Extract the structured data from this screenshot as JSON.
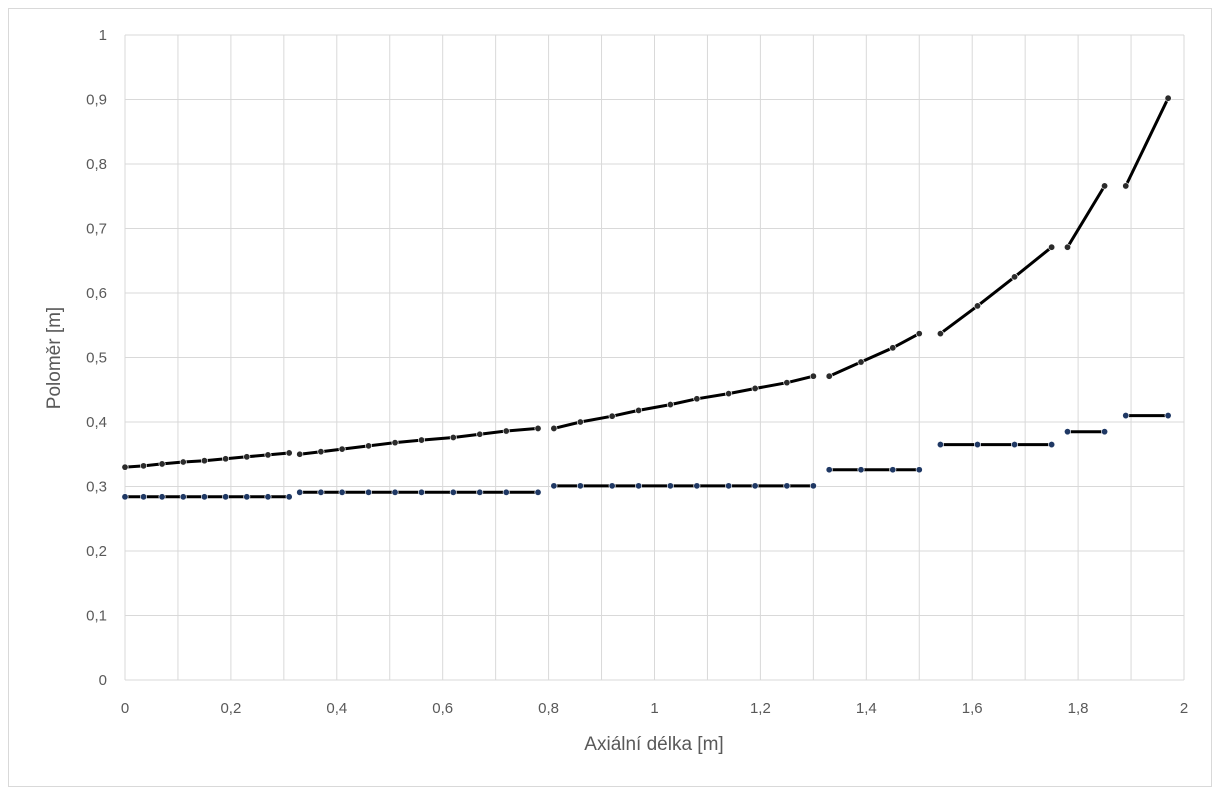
{
  "chart_data": {
    "type": "line",
    "title": "",
    "xlabel": "Axiální délka [m]",
    "ylabel": "Poloměr [m]",
    "xlim": [
      0,
      2
    ],
    "ylim": [
      0,
      1
    ],
    "x_ticks": [
      "0",
      "0,2",
      "0,4",
      "0,6",
      "0,8",
      "1",
      "1,2",
      "1,4",
      "1,6",
      "1,8",
      "2"
    ],
    "y_ticks": [
      "0",
      "0,1",
      "0,2",
      "0,3",
      "0,4",
      "0,5",
      "0,6",
      "0,7",
      "0,8",
      "0,9",
      "1"
    ],
    "grid": true,
    "legend": "none",
    "colors": {
      "outer": "#000000",
      "inner_line": "#000000",
      "inner_marker": "#1f3864",
      "outer_marker": "#2b2b2b"
    },
    "series": [
      {
        "segments": [
          {
            "x": [
              0,
              0.035,
              0.07,
              0.11,
              0.15,
              0.19,
              0.23,
              0.27,
              0.31
            ],
            "y": [
              0.33,
              0.332,
              0.335,
              0.338,
              0.34,
              0.343,
              0.346,
              0.349,
              0.352
            ]
          },
          {
            "x": [
              0.33,
              0.37,
              0.41,
              0.46,
              0.51,
              0.56,
              0.62,
              0.67,
              0.72,
              0.78
            ],
            "y": [
              0.35,
              0.354,
              0.358,
              0.363,
              0.368,
              0.372,
              0.376,
              0.381,
              0.386,
              0.39
            ]
          },
          {
            "x": [
              0.81,
              0.86,
              0.92,
              0.97,
              1.03,
              1.08,
              1.14,
              1.19,
              1.25,
              1.3
            ],
            "y": [
              0.39,
              0.4,
              0.409,
              0.418,
              0.427,
              0.436,
              0.444,
              0.452,
              0.461,
              0.471
            ]
          },
          {
            "x": [
              1.33,
              1.39,
              1.45,
              1.5
            ],
            "y": [
              0.471,
              0.493,
              0.515,
              0.537
            ]
          },
          {
            "x": [
              1.54,
              1.61,
              1.68,
              1.75
            ],
            "y": [
              0.537,
              0.58,
              0.625,
              0.671
            ]
          },
          {
            "x": [
              1.78,
              1.85
            ],
            "y": [
              0.671,
              0.766
            ]
          },
          {
            "x": [
              1.89,
              1.97
            ],
            "y": [
              0.766,
              0.902
            ]
          }
        ]
      },
      {
        "segments": [
          {
            "x": [
              0,
              0.035,
              0.07,
              0.11,
              0.15,
              0.19,
              0.23,
              0.27,
              0.31
            ],
            "y": [
              0.284,
              0.284,
              0.284,
              0.284,
              0.284,
              0.284,
              0.284,
              0.284,
              0.284
            ]
          },
          {
            "x": [
              0.33,
              0.37,
              0.41,
              0.46,
              0.51,
              0.56,
              0.62,
              0.67,
              0.72,
              0.78
            ],
            "y": [
              0.291,
              0.291,
              0.291,
              0.291,
              0.291,
              0.291,
              0.291,
              0.291,
              0.291,
              0.291
            ]
          },
          {
            "x": [
              0.81,
              0.86,
              0.92,
              0.97,
              1.03,
              1.08,
              1.14,
              1.19,
              1.25,
              1.3
            ],
            "y": [
              0.301,
              0.301,
              0.301,
              0.301,
              0.301,
              0.301,
              0.301,
              0.301,
              0.301,
              0.301
            ]
          },
          {
            "x": [
              1.33,
              1.39,
              1.45,
              1.5
            ],
            "y": [
              0.326,
              0.326,
              0.326,
              0.326
            ]
          },
          {
            "x": [
              1.54,
              1.61,
              1.68,
              1.75
            ],
            "y": [
              0.365,
              0.365,
              0.365,
              0.365
            ]
          },
          {
            "x": [
              1.78,
              1.85
            ],
            "y": [
              0.385,
              0.385
            ]
          },
          {
            "x": [
              1.89,
              1.97
            ],
            "y": [
              0.41,
              0.41
            ]
          }
        ]
      }
    ]
  }
}
